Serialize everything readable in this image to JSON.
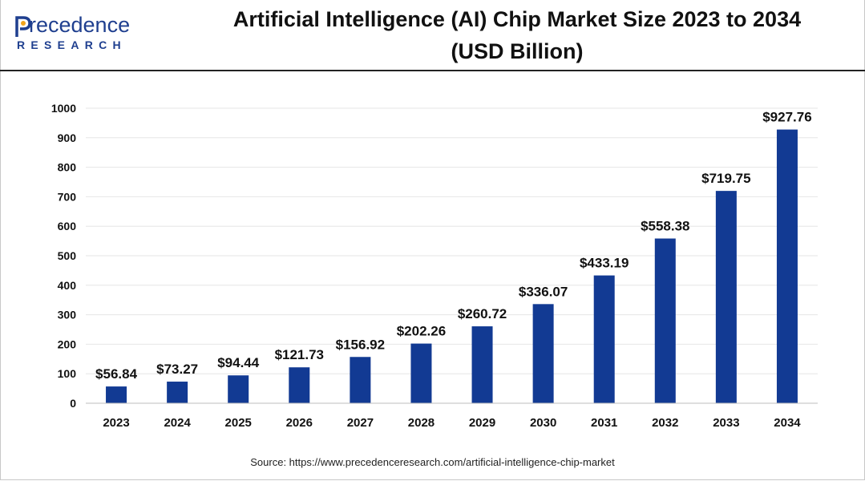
{
  "header": {
    "logo_word": "recedence",
    "logo_sub": "RESEARCH",
    "title": "Artificial Intelligence (AI) Chip Market Size 2023 to 2034\n(USD Billion)"
  },
  "colors": {
    "bar": "#123a93",
    "brand": "#1f3f8f"
  },
  "source": "Source: https://www.precedenceresearch.com/artificial-intelligence-chip-market",
  "chart_data": {
    "type": "bar",
    "title": "Artificial Intelligence (AI) Chip Market Size 2023 to 2034 (USD Billion)",
    "categories": [
      "2023",
      "2024",
      "2025",
      "2026",
      "2027",
      "2028",
      "2029",
      "2030",
      "2031",
      "2032",
      "2033",
      "2034"
    ],
    "values": [
      56.84,
      73.27,
      94.44,
      121.73,
      156.92,
      202.26,
      260.72,
      336.07,
      433.19,
      558.38,
      719.75,
      927.76
    ],
    "value_labels": [
      "$56.84",
      "$73.27",
      "$94.44",
      "$121.73",
      "$156.92",
      "$202.26",
      "$260.72",
      "$336.07",
      "$433.19",
      "$558.38",
      "$719.75",
      "$927.76"
    ],
    "yticks": [
      "0",
      "100",
      "200",
      "300",
      "400",
      "500",
      "600",
      "700",
      "800",
      "900",
      "1000"
    ],
    "ylim": [
      0,
      1000
    ],
    "xlabel": "",
    "ylabel": "",
    "grid": true
  }
}
